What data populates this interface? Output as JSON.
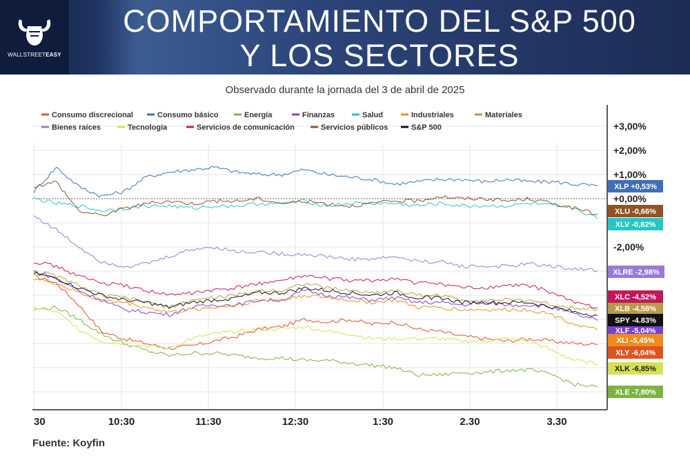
{
  "header": {
    "title_line1": "COMPORTAMIENTO DEL S&P 500",
    "title_line2": "Y LOS SECTORES",
    "logo_text_light": "WALLSTREET",
    "logo_text_bold": "EASY"
  },
  "subtitle": "Observado durante la jornada del 3 de abril de 2025",
  "source": "Fuente: Koyfin",
  "chart_data": {
    "type": "line",
    "x_ticks": [
      "30",
      "10:30",
      "11:30",
      "12:30",
      "1:30",
      "2.30",
      "3.30"
    ],
    "x": [
      "9:30",
      "9:45",
      "10:00",
      "10:15",
      "10:30",
      "10:45",
      "11:00",
      "11:15",
      "11:30",
      "11:45",
      "12:00",
      "12:15",
      "12:30",
      "12:45",
      "13:00",
      "13:15",
      "13:30",
      "13:45",
      "14:00",
      "14:15",
      "14:30",
      "14:45",
      "15:00",
      "15:15",
      "15:30",
      "15:45"
    ],
    "y_ticks": [
      "+3,00%",
      "+2,00%",
      "+1,00%",
      "+0,00%",
      "-2,00%"
    ],
    "ylim": [
      -8.2,
      3.6
    ],
    "zero_line": "dotted",
    "grid": true,
    "legend_position": "top-left",
    "series": [
      {
        "name": "Consumo discrecional",
        "ticker": "XLY",
        "label": "XLY  -6,04%",
        "color": "#e0531e",
        "values": [
          -3.2,
          -3.5,
          -4.4,
          -5.5,
          -5.8,
          -6.0,
          -6.2,
          -6.1,
          -5.9,
          -5.7,
          -5.4,
          -5.3,
          -5.0,
          -5.1,
          -5.0,
          -5.2,
          -5.1,
          -5.4,
          -5.5,
          -5.7,
          -5.8,
          -5.9,
          -5.8,
          -5.9,
          -6.0,
          -6.04
        ]
      },
      {
        "name": "Consumo básico",
        "ticker": "XLP",
        "label": "XLP +0,53%",
        "color": "#3f6fb5",
        "values": [
          0.3,
          1.3,
          0.5,
          0.1,
          0.3,
          0.9,
          1.1,
          1.2,
          1.3,
          1.1,
          1.0,
          1.0,
          1.2,
          1.0,
          0.9,
          0.8,
          0.6,
          0.7,
          0.8,
          0.8,
          0.7,
          0.8,
          0.7,
          0.7,
          0.6,
          0.53
        ]
      },
      {
        "name": "Energía",
        "ticker": "XLE",
        "label": "XLE  -7,80%",
        "color": "#7cb342",
        "values": [
          -4.6,
          -4.5,
          -5.0,
          -5.6,
          -6.0,
          -6.3,
          -6.5,
          -6.4,
          -6.4,
          -6.5,
          -6.6,
          -6.6,
          -6.7,
          -6.7,
          -6.8,
          -6.9,
          -7.0,
          -7.3,
          -7.3,
          -7.2,
          -7.2,
          -7.1,
          -7.1,
          -7.3,
          -7.7,
          -7.8
        ]
      },
      {
        "name": "Finanzas",
        "ticker": "XLF",
        "label": "XLF  -5,04%",
        "color": "#7b3fd1",
        "values": [
          -3.0,
          -3.3,
          -3.8,
          -4.2,
          -4.6,
          -4.7,
          -4.8,
          -4.5,
          -4.4,
          -4.4,
          -4.2,
          -4.2,
          -3.8,
          -4.0,
          -4.1,
          -4.2,
          -4.1,
          -4.3,
          -4.3,
          -4.4,
          -4.3,
          -4.4,
          -4.4,
          -4.5,
          -4.8,
          -5.04
        ]
      },
      {
        "name": "Salud",
        "ticker": "XLV",
        "label": "XLV  -0,82%",
        "color": "#26c6c6",
        "values": [
          0.0,
          -0.2,
          -0.3,
          -0.5,
          -0.4,
          -0.3,
          -0.3,
          -0.4,
          -0.3,
          -0.3,
          -0.2,
          -0.2,
          -0.1,
          -0.3,
          -0.2,
          -0.2,
          -0.2,
          -0.3,
          -0.2,
          -0.3,
          -0.3,
          -0.3,
          -0.2,
          -0.3,
          -0.4,
          -0.82
        ]
      },
      {
        "name": "Industriales",
        "ticker": "XLI",
        "label": "XLI  -5,45%",
        "color": "#ef8c1e",
        "values": [
          -3.3,
          -3.5,
          -3.9,
          -4.2,
          -4.3,
          -4.5,
          -4.7,
          -4.6,
          -4.5,
          -4.4,
          -4.2,
          -4.2,
          -4.0,
          -4.1,
          -4.2,
          -4.3,
          -4.2,
          -4.5,
          -4.5,
          -4.6,
          -4.6,
          -4.6,
          -4.6,
          -4.8,
          -5.2,
          -5.45
        ]
      },
      {
        "name": "Materiales",
        "ticker": "XLB",
        "label": "XLB  -4,58%",
        "color": "#b79b4b",
        "values": [
          -3.0,
          -3.2,
          -3.6,
          -4.0,
          -4.1,
          -4.3,
          -4.5,
          -4.2,
          -4.1,
          -4.0,
          -3.8,
          -3.8,
          -3.5,
          -3.7,
          -3.8,
          -3.9,
          -3.8,
          -4.0,
          -4.0,
          -4.2,
          -4.2,
          -4.2,
          -4.2,
          -4.4,
          -4.5,
          -4.58
        ]
      },
      {
        "name": "Bienes raíces",
        "ticker": "XLRE",
        "label": "XLRE  -2,98%",
        "color": "#9a7ad8",
        "values": [
          -0.7,
          -1.3,
          -2.0,
          -2.6,
          -2.8,
          -2.7,
          -2.4,
          -2.1,
          -2.0,
          -2.2,
          -2.2,
          -2.3,
          -2.3,
          -2.4,
          -2.5,
          -2.5,
          -2.4,
          -2.6,
          -2.6,
          -2.8,
          -2.8,
          -2.8,
          -2.7,
          -2.8,
          -2.9,
          -2.98
        ]
      },
      {
        "name": "Tecnología",
        "ticker": "XLK",
        "label": "XLK  -6,85%",
        "color": "#d4e157",
        "values": [
          -4.5,
          -4.7,
          -5.4,
          -5.9,
          -6.0,
          -6.1,
          -6.2,
          -5.8,
          -5.6,
          -5.5,
          -5.4,
          -5.4,
          -5.3,
          -5.5,
          -5.6,
          -5.8,
          -5.8,
          -5.8,
          -5.8,
          -5.9,
          -5.9,
          -5.8,
          -5.9,
          -6.3,
          -6.7,
          -6.85
        ]
      },
      {
        "name": "Servicios de comunicación",
        "ticker": "XLC",
        "label": "XLC  -4,52%",
        "color": "#c2185b",
        "values": [
          -2.6,
          -2.8,
          -3.2,
          -3.5,
          -3.6,
          -3.8,
          -4.0,
          -3.9,
          -3.8,
          -3.7,
          -3.5,
          -3.4,
          -3.2,
          -3.3,
          -3.4,
          -3.4,
          -3.3,
          -3.5,
          -3.5,
          -3.7,
          -3.7,
          -3.6,
          -3.6,
          -3.9,
          -4.3,
          -4.52
        ]
      },
      {
        "name": "Servicios públicos",
        "ticker": "XLU",
        "label": "XLU  -0,66%",
        "color": "#8d5524",
        "values": [
          0.5,
          0.7,
          -0.5,
          -0.7,
          -0.4,
          -0.2,
          -0.1,
          -0.2,
          -0.1,
          -0.1,
          0.0,
          -0.2,
          -0.1,
          -0.2,
          -0.3,
          -0.2,
          -0.1,
          -0.1,
          0.1,
          0.0,
          0.0,
          -0.1,
          0.0,
          -0.2,
          -0.4,
          -0.66
        ]
      },
      {
        "name": "S&P 500",
        "ticker": "SPY",
        "label": "SPY  -4.83%",
        "color": "#111111",
        "values": [
          -3.1,
          -3.3,
          -3.7,
          -4.0,
          -4.2,
          -4.3,
          -4.5,
          -4.3,
          -4.2,
          -4.1,
          -3.9,
          -3.9,
          -3.7,
          -3.8,
          -3.9,
          -4.0,
          -3.9,
          -4.1,
          -4.1,
          -4.3,
          -4.3,
          -4.3,
          -4.3,
          -4.5,
          -4.7,
          -4.83
        ]
      }
    ]
  }
}
